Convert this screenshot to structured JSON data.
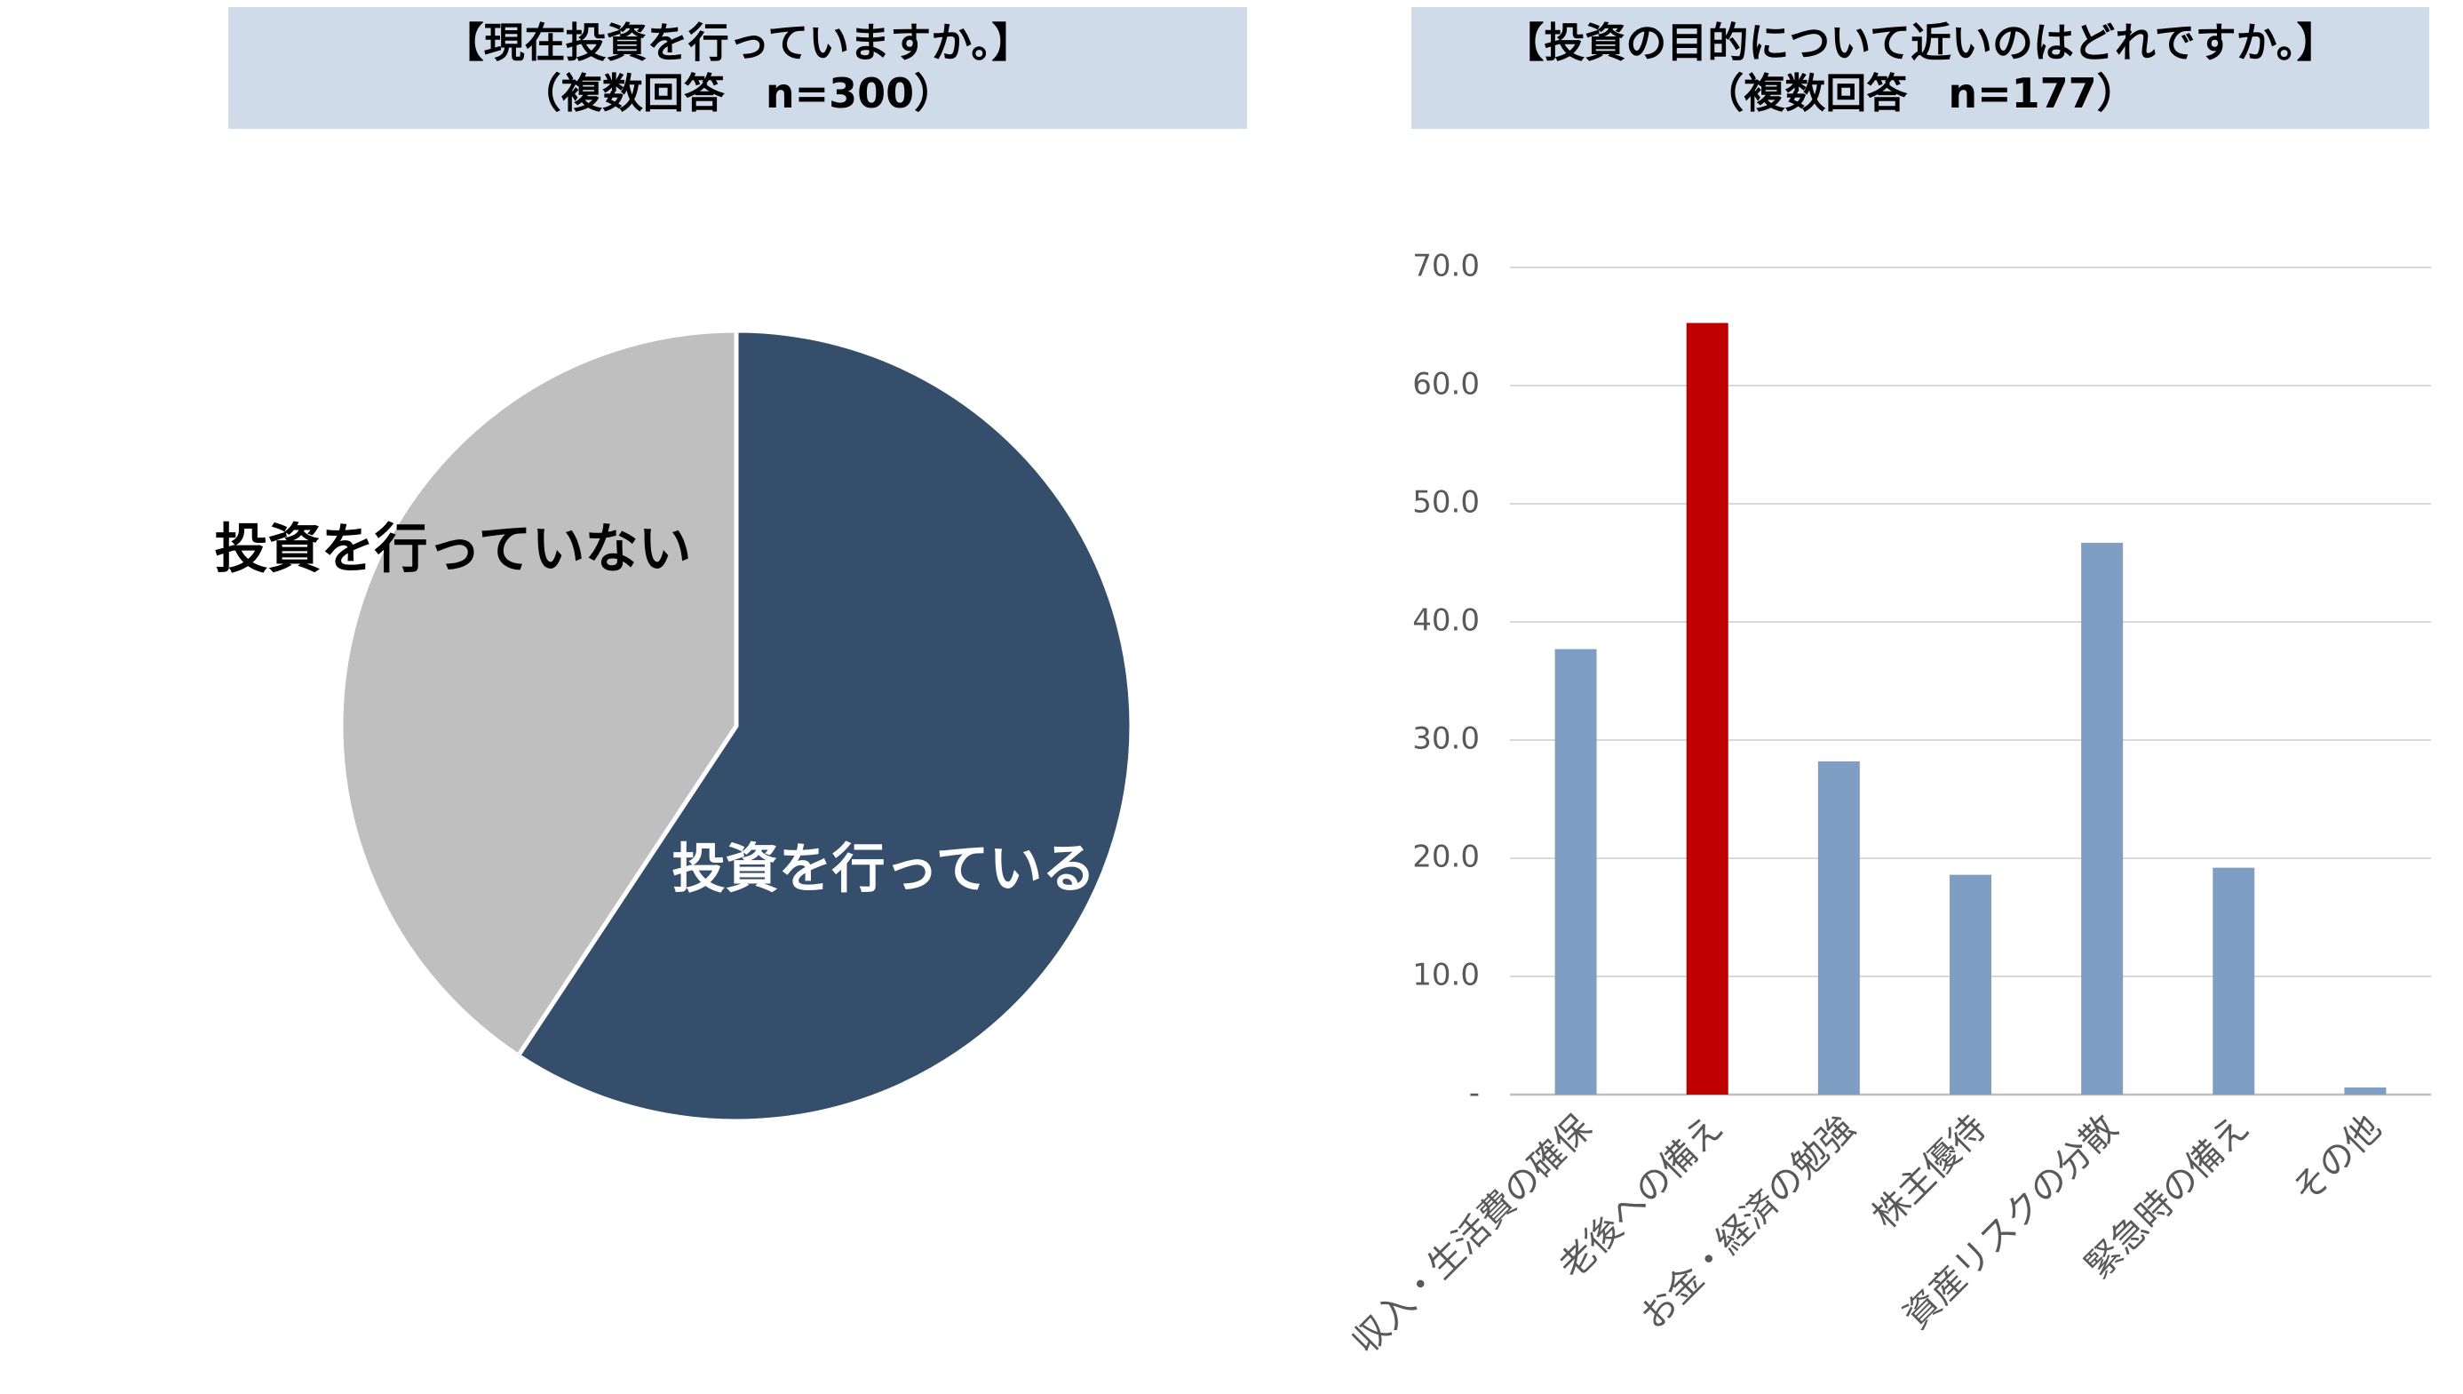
{
  "chart_data": [
    {
      "type": "pie",
      "title": "【現在投資を行っていますか。】",
      "subtitle": "（複数回答　n=300）",
      "slices": [
        {
          "label": "投資を行っている",
          "value": 59.3,
          "color": "#344e6c"
        },
        {
          "label": "投資を行っていない",
          "value": 40.7,
          "color": "#bfbfbf"
        }
      ]
    },
    {
      "type": "bar",
      "title": "【投資の目的について近いのはどれですか。】",
      "subtitle": "（複数回答　n=177）",
      "categories": [
        "収入・生活費の確保",
        "老後への備え",
        "お金・経済の勉強",
        "株主優待",
        "資産リスクの分散",
        "緊急時の備え",
        "その他"
      ],
      "values": [
        37.7,
        65.3,
        28.2,
        18.6,
        46.7,
        19.2,
        0.6
      ],
      "colors": [
        "#7f9ec4",
        "#c00000",
        "#7f9ec4",
        "#7f9ec4",
        "#7f9ec4",
        "#7f9ec4",
        "#7f9ec4"
      ],
      "ylim": [
        0,
        70
      ],
      "yticks": [
        0,
        10,
        20,
        30,
        40,
        50,
        60,
        70
      ],
      "ytick_labels": [
        "-",
        "10.0",
        "20.0",
        "30.0",
        "40.0",
        "50.0",
        "60.0",
        "70.0"
      ],
      "grid": true
    }
  ]
}
